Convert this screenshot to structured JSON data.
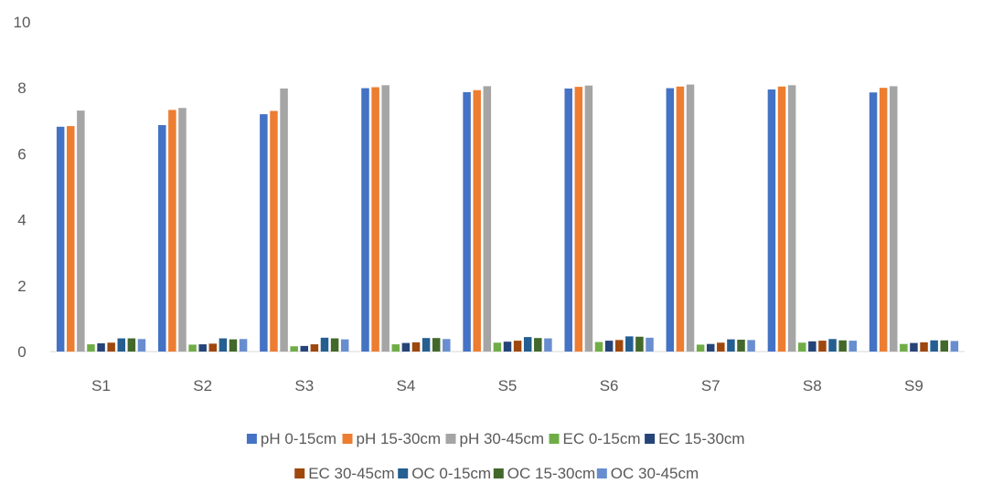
{
  "chart_data": {
    "type": "bar",
    "title": "",
    "xlabel": "",
    "ylabel": "",
    "ylim": [
      0,
      10
    ],
    "yticks": [
      0,
      2,
      4,
      6,
      8,
      10
    ],
    "grid": false,
    "legend_position": "bottom",
    "categories": [
      "S1",
      "S2",
      "S3",
      "S4",
      "S5",
      "S6",
      "S7",
      "S8",
      "S9"
    ],
    "series": [
      {
        "name": "pH 0-15cm",
        "color": "#4472C4",
        "values": [
          6.82,
          6.87,
          7.2,
          7.99,
          7.87,
          7.98,
          7.99,
          7.95,
          7.86
        ]
      },
      {
        "name": "pH 15-30cm",
        "color": "#ED7D31",
        "values": [
          6.84,
          7.33,
          7.3,
          8.02,
          7.93,
          8.03,
          8.04,
          8.04,
          8.0
        ]
      },
      {
        "name": "pH 30-45cm",
        "color": "#A5A5A5",
        "values": [
          7.31,
          7.39,
          7.98,
          8.08,
          8.05,
          8.07,
          8.1,
          8.08,
          8.05
        ]
      },
      {
        "name": "EC 0-15cm",
        "color": "#70AD47",
        "values": [
          0.22,
          0.21,
          0.16,
          0.22,
          0.27,
          0.29,
          0.21,
          0.27,
          0.23
        ]
      },
      {
        "name": "EC 15-30cm",
        "color": "#264478",
        "values": [
          0.25,
          0.22,
          0.17,
          0.26,
          0.3,
          0.33,
          0.23,
          0.31,
          0.26
        ]
      },
      {
        "name": "EC 30-45cm",
        "color": "#9E480E",
        "values": [
          0.27,
          0.24,
          0.22,
          0.28,
          0.33,
          0.35,
          0.27,
          0.33,
          0.28
        ]
      },
      {
        "name": "OC 0-15cm",
        "color": "#255E91",
        "values": [
          0.4,
          0.4,
          0.42,
          0.41,
          0.44,
          0.46,
          0.37,
          0.38,
          0.34
        ]
      },
      {
        "name": "OC 15-30cm",
        "color": "#43682B",
        "values": [
          0.4,
          0.37,
          0.4,
          0.41,
          0.41,
          0.45,
          0.36,
          0.34,
          0.34
        ]
      },
      {
        "name": "OC 30-45cm",
        "color": "#698ED0",
        "values": [
          0.38,
          0.38,
          0.37,
          0.38,
          0.4,
          0.42,
          0.35,
          0.33,
          0.32
        ]
      }
    ]
  }
}
